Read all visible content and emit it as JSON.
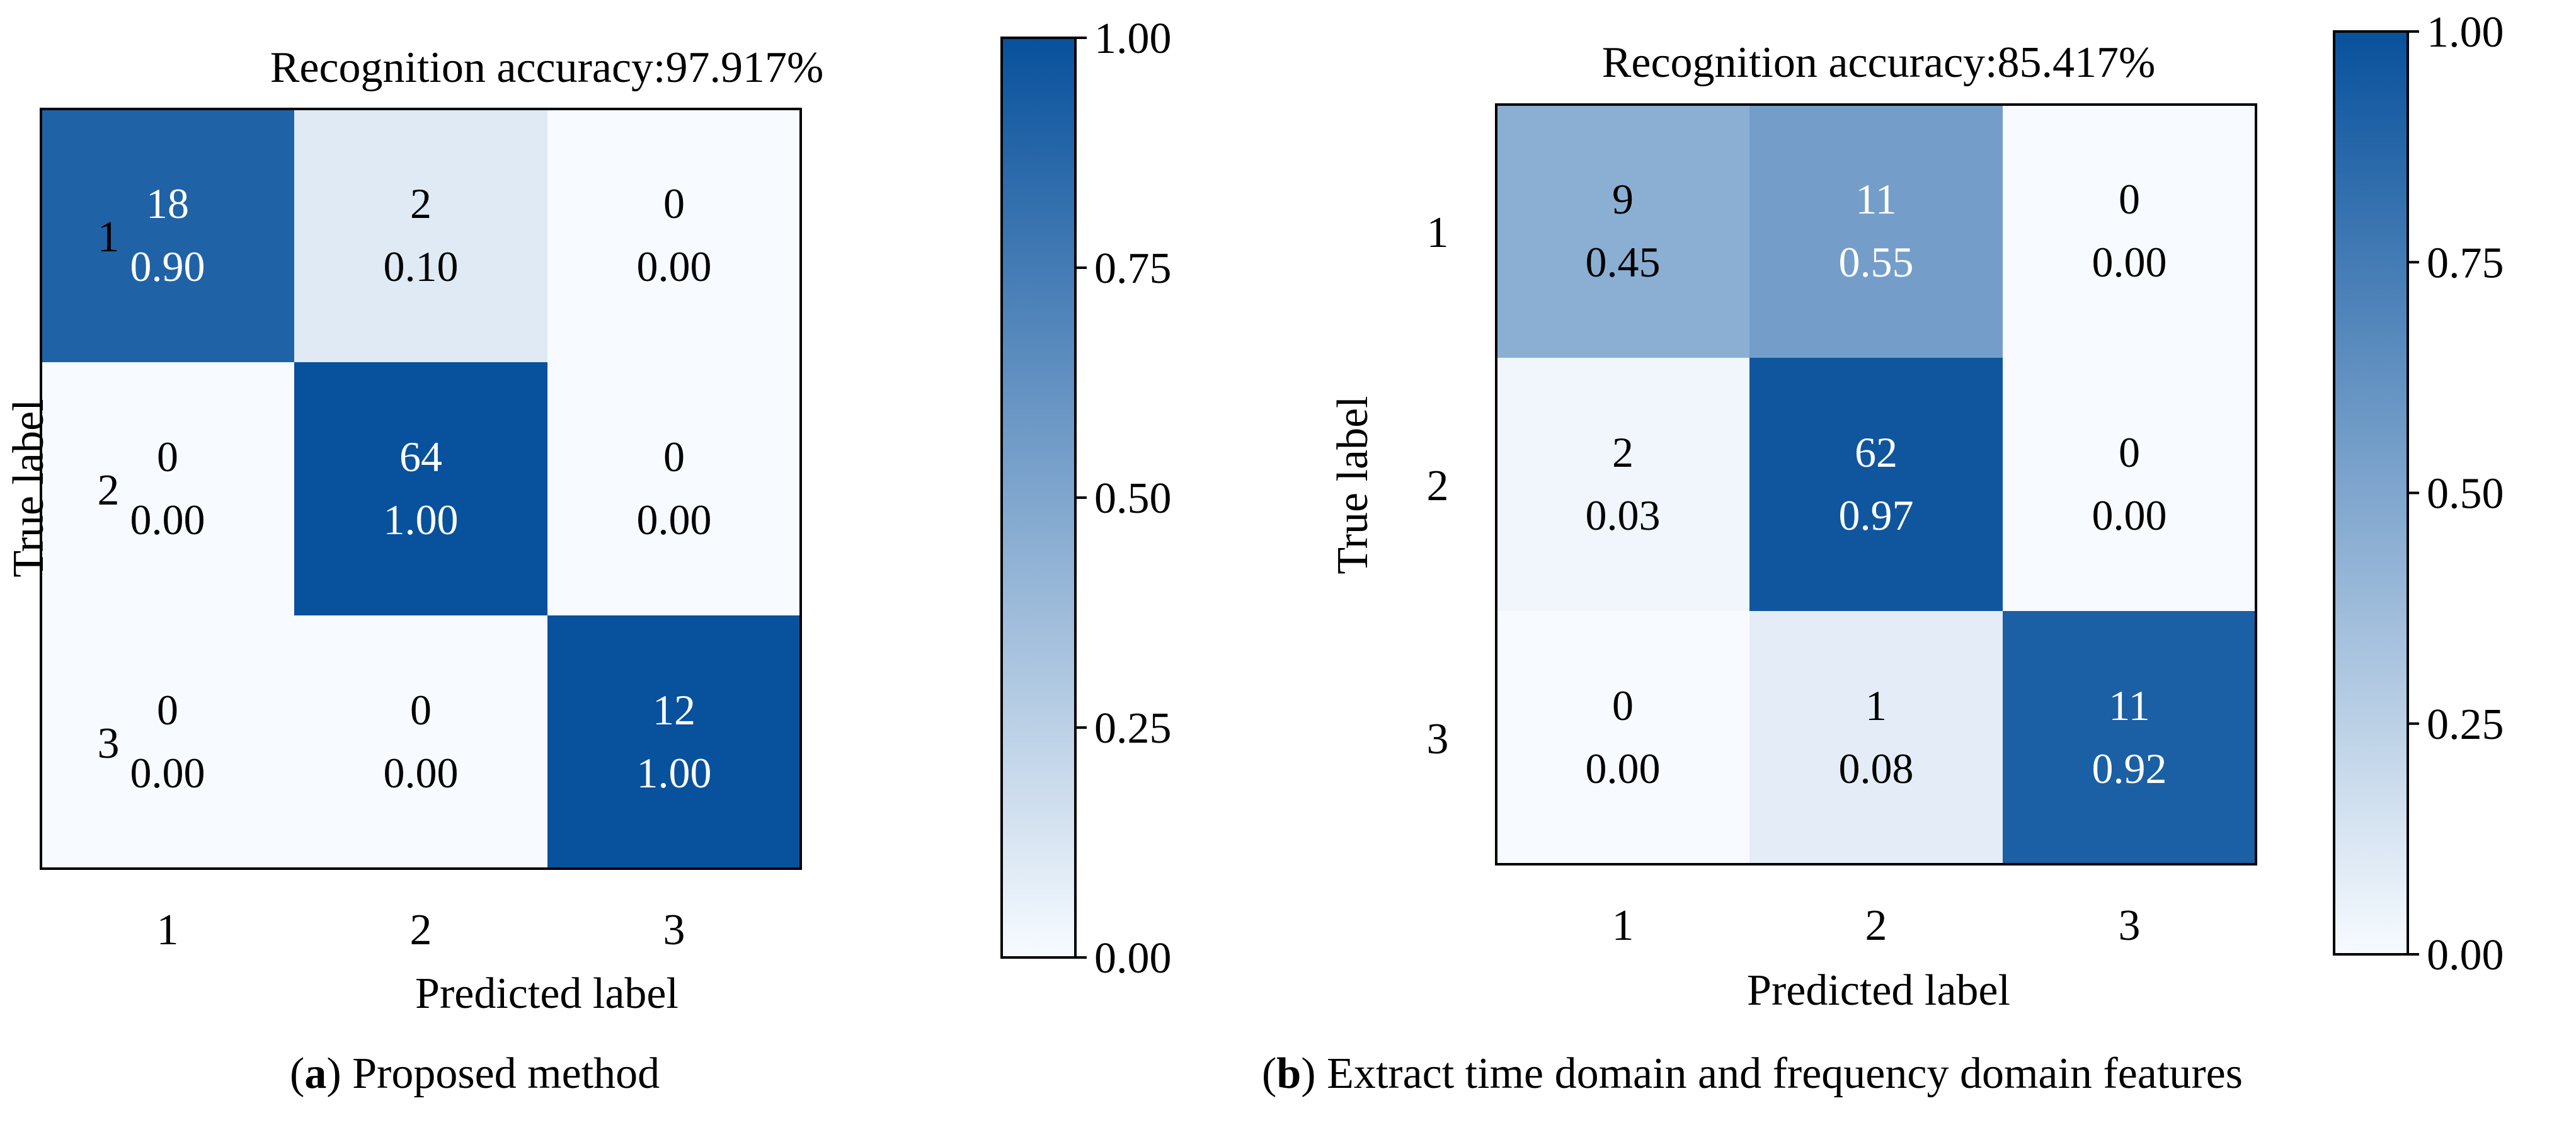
{
  "chart_data": [
    {
      "type": "heatmap",
      "panel": "a",
      "title": "Recognition accuracy:97.917%",
      "xlabel": "Predicted label",
      "ylabel": "True label",
      "x_ticks": [
        "1",
        "2",
        "3"
      ],
      "y_ticks": [
        "1",
        "2",
        "3"
      ],
      "counts": [
        [
          18,
          2,
          0
        ],
        [
          0,
          64,
          0
        ],
        [
          0,
          0,
          12
        ]
      ],
      "values": [
        [
          0.9,
          0.1,
          0.0
        ],
        [
          0.0,
          1.0,
          0.0
        ],
        [
          0.0,
          0.0,
          1.0
        ]
      ],
      "colorbar": {
        "range": [
          0,
          1
        ],
        "ticks": [
          "0.00",
          "0.25",
          "0.50",
          "0.75",
          "1.00"
        ],
        "colormap": [
          "#f7fbff",
          "#08519c"
        ]
      },
      "caption": {
        "letter": "a",
        "text": "Proposed method"
      }
    },
    {
      "type": "heatmap",
      "panel": "b",
      "title": "Recognition accuracy:85.417%",
      "xlabel": "Predicted label",
      "ylabel": "True label",
      "x_ticks": [
        "1",
        "2",
        "3"
      ],
      "y_ticks": [
        "1",
        "2",
        "3"
      ],
      "counts": [
        [
          9,
          11,
          0
        ],
        [
          2,
          62,
          0
        ],
        [
          0,
          1,
          11
        ]
      ],
      "values": [
        [
          0.45,
          0.55,
          0.0
        ],
        [
          0.03,
          0.97,
          0.0
        ],
        [
          0.0,
          0.08,
          0.92
        ]
      ],
      "colorbar": {
        "range": [
          0,
          1
        ],
        "ticks": [
          "0.00",
          "0.25",
          "0.50",
          "0.75",
          "1.00"
        ],
        "colormap": [
          "#f7fbff",
          "#08519c"
        ]
      },
      "caption": {
        "letter": "b",
        "text": "Extract time domain and frequency domain features"
      }
    }
  ]
}
